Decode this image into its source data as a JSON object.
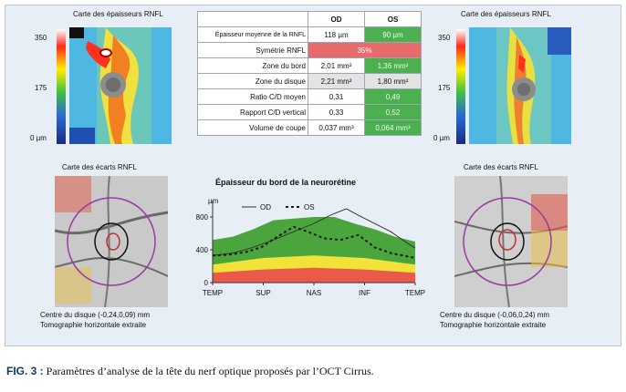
{
  "top_left_map": {
    "title": "Carte des épaisseurs RNFL",
    "scale_top": "350",
    "scale_mid": "175",
    "scale_bottom": "0 µm"
  },
  "top_right_map": {
    "title": "Carte des épaisseurs RNFL",
    "scale_top": "350",
    "scale_mid": "175",
    "scale_bottom": "0 µm"
  },
  "table": {
    "headers": [
      "",
      "OD",
      "OS"
    ],
    "rows": [
      {
        "label": "Épaisseur moyenne de la RNFL",
        "od": "118 µm",
        "os": "90 µm",
        "od_color": "#ffffff",
        "os_color": "#4caf50"
      },
      {
        "label": "Symétrie RNFL",
        "merged": "35%",
        "color": "#e86b6b"
      },
      {
        "label": "Zone du bord",
        "od": "2,01 mm²",
        "os": "1,36 mm²",
        "od_color": "#ffffff",
        "os_color": "#4caf50"
      },
      {
        "label": "Zone du disque",
        "od": "2,21 mm²",
        "os": "1,80 mm²",
        "od_color": "#e3e3e3",
        "os_color": "#e3e3e3"
      },
      {
        "label": "Ratio C/D moyen",
        "od": "0,31",
        "os": "0,49",
        "od_color": "#ffffff",
        "os_color": "#4caf50"
      },
      {
        "label": "Rapport C/D vertical",
        "od": "0,33",
        "os": "0,52",
        "od_color": "#ffffff",
        "os_color": "#4caf50"
      },
      {
        "label": "Volume de coupe",
        "od": "0,037 mm³",
        "os": "0,064 mm³",
        "od_color": "#ffffff",
        "os_color": "#4caf50"
      }
    ]
  },
  "left_deviation": {
    "title": "Carte des écarts RNFL",
    "center": "Centre du disque  (-0,24,0,09) mm",
    "tomo": "Tomographie horizontale extraite"
  },
  "right_deviation": {
    "title": "Carte des écarts RNFL",
    "center": "Centre du disque  (-0,06,0,24) mm",
    "tomo": "Tomographie horizontale extraite"
  },
  "chart_data": {
    "type": "line",
    "title": "Épaisseur du bord de la neurorétine",
    "ylabel": "µm",
    "ylim": [
      0,
      1000
    ],
    "yticks": [
      0,
      400,
      800
    ],
    "x_labels": [
      "TEMP",
      "SUP",
      "NAS",
      "INF",
      "TEMP"
    ],
    "x": [
      0,
      0.25,
      0.5,
      0.75,
      1.0
    ],
    "series": [
      {
        "name": "OD",
        "style": "solid",
        "color": "#333333",
        "points": [
          [
            0,
            330
          ],
          [
            0.1,
            360
          ],
          [
            0.2,
            430
          ],
          [
            0.3,
            520
          ],
          [
            0.4,
            620
          ],
          [
            0.5,
            720
          ],
          [
            0.58,
            820
          ],
          [
            0.66,
            900
          ],
          [
            0.72,
            820
          ],
          [
            0.8,
            720
          ],
          [
            0.88,
            620
          ],
          [
            0.95,
            500
          ],
          [
            1.0,
            420
          ]
        ]
      },
      {
        "name": "OS",
        "style": "dotted",
        "color": "#1a1a1a",
        "points": [
          [
            0,
            330
          ],
          [
            0.08,
            340
          ],
          [
            0.16,
            370
          ],
          [
            0.24,
            430
          ],
          [
            0.32,
            560
          ],
          [
            0.4,
            680
          ],
          [
            0.47,
            620
          ],
          [
            0.55,
            540
          ],
          [
            0.63,
            520
          ],
          [
            0.72,
            580
          ],
          [
            0.8,
            430
          ],
          [
            0.88,
            360
          ],
          [
            1.0,
            300
          ]
        ]
      }
    ],
    "bands": [
      {
        "color": "#e95a4a",
        "upper": [
          [
            0,
            120
          ],
          [
            0.25,
            160
          ],
          [
            0.5,
            180
          ],
          [
            0.75,
            160
          ],
          [
            1.0,
            120
          ]
        ]
      },
      {
        "color": "#f3e23a",
        "upper": [
          [
            0,
            220
          ],
          [
            0.25,
            300
          ],
          [
            0.5,
            330
          ],
          [
            0.75,
            300
          ],
          [
            1.0,
            220
          ]
        ]
      },
      {
        "color": "#4aa63c",
        "upper": [
          [
            0,
            520
          ],
          [
            0.1,
            560
          ],
          [
            0.2,
            650
          ],
          [
            0.3,
            760
          ],
          [
            0.4,
            780
          ],
          [
            0.5,
            800
          ],
          [
            0.6,
            800
          ],
          [
            0.7,
            720
          ],
          [
            0.8,
            650
          ],
          [
            0.9,
            560
          ],
          [
            1.0,
            500
          ]
        ]
      }
    ]
  },
  "caption": {
    "prefix": "FIG. 3 :",
    "text": " Paramètres d’analyse de la tête du nerf optique proposés par l’OCT Cirrus."
  }
}
